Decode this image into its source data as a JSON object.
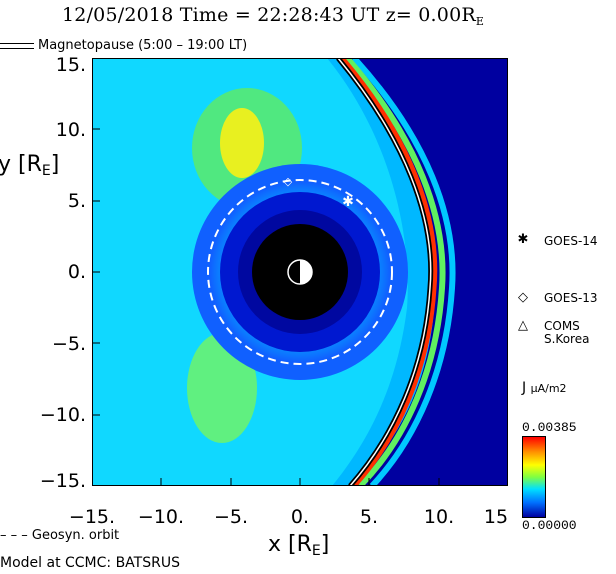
{
  "title": {
    "date": "12/05/2018",
    "time_label": "Time =",
    "time": "22:28:43 UT",
    "z_label": "z= 0.00R",
    "z_sub": "E"
  },
  "magnetopause_legend": "Magnetopause (5:00 – 19:00 LT)",
  "axes": {
    "xlabel": "x [R",
    "xlabel_sub": "E",
    "xlabel_end": "]",
    "ylabel": "y [R",
    "ylabel_sub": "E",
    "ylabel_end": "]",
    "xticks": [
      "−15.",
      "−10.",
      "−5.",
      "0.",
      "5.",
      "10.",
      "15"
    ],
    "yticks": [
      "15.",
      "10.",
      "5.",
      "0.",
      "−5.",
      "−10.",
      "−15."
    ]
  },
  "satellites": [
    {
      "symbol": "✱",
      "label": "GOES-14"
    },
    {
      "symbol": "◇",
      "label": "GOES-13"
    },
    {
      "symbol": "△",
      "label": "COMS\nS.Korea"
    }
  ],
  "colorbar": {
    "label": "J",
    "unit": "μA/m2",
    "max": "0.00385",
    "min": "0.00000"
  },
  "geosync_legend": "– – – Geosyn. orbit",
  "model_credit": "Model at CCMC: BATSRUS",
  "colors": {
    "background": "#0000a0",
    "earth": "#000000"
  }
}
